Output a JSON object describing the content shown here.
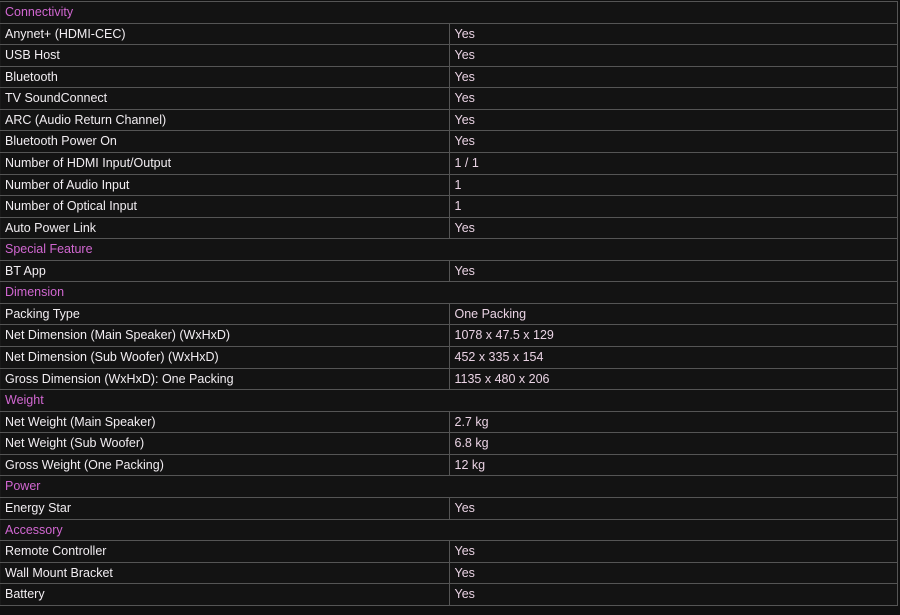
{
  "colors": {
    "page_background": "#101010",
    "row_background": "#131313",
    "border": "#555555",
    "section_text": "#d167d1",
    "label_text": "#f2eef2",
    "value_text": "#ead3e4"
  },
  "table": {
    "rows": [
      {
        "type": "section",
        "label": "Connectivity"
      },
      {
        "type": "spec",
        "label": "Anynet+ (HDMI-CEC)",
        "value": "Yes"
      },
      {
        "type": "spec",
        "label": "USB Host",
        "value": "Yes"
      },
      {
        "type": "spec",
        "label": "Bluetooth",
        "value": "Yes"
      },
      {
        "type": "spec",
        "label": "TV SoundConnect",
        "value": "Yes"
      },
      {
        "type": "spec",
        "label": "ARC (Audio Return Channel)",
        "value": "Yes"
      },
      {
        "type": "spec",
        "label": "Bluetooth Power On",
        "value": "Yes"
      },
      {
        "type": "spec",
        "label": "Number of HDMI Input/Output",
        "value": "1 / 1"
      },
      {
        "type": "spec",
        "label": "Number of Audio Input",
        "value": "1"
      },
      {
        "type": "spec",
        "label": "Number of Optical Input",
        "value": "1"
      },
      {
        "type": "spec",
        "label": "Auto Power Link",
        "value": "Yes"
      },
      {
        "type": "section",
        "label": "Special Feature"
      },
      {
        "type": "spec",
        "label": "BT App",
        "value": "Yes"
      },
      {
        "type": "section",
        "label": "Dimension"
      },
      {
        "type": "spec",
        "label": "Packing Type",
        "value": "One Packing"
      },
      {
        "type": "spec",
        "label": "Net Dimension (Main Speaker) (WxHxD)",
        "value": "1078 x 47.5 x 129"
      },
      {
        "type": "spec",
        "label": "Net Dimension (Sub Woofer) (WxHxD)",
        "value": "452 x 335 x 154"
      },
      {
        "type": "spec",
        "label": "Gross Dimension (WxHxD): One Packing",
        "value": "1135 x 480 x 206"
      },
      {
        "type": "section",
        "label": "Weight"
      },
      {
        "type": "spec",
        "label": "Net Weight (Main Speaker)",
        "value": "2.7 kg"
      },
      {
        "type": "spec",
        "label": "Net Weight (Sub Woofer)",
        "value": "6.8 kg"
      },
      {
        "type": "spec",
        "label": "Gross Weight (One Packing)",
        "value": "12 kg"
      },
      {
        "type": "section",
        "label": "Power"
      },
      {
        "type": "spec",
        "label": "Energy Star",
        "value": "Yes"
      },
      {
        "type": "section",
        "label": "Accessory"
      },
      {
        "type": "spec",
        "label": "Remote Controller",
        "value": "Yes"
      },
      {
        "type": "spec",
        "label": "Wall Mount Bracket",
        "value": "Yes"
      },
      {
        "type": "spec",
        "label": "Battery",
        "value": "Yes"
      }
    ]
  }
}
